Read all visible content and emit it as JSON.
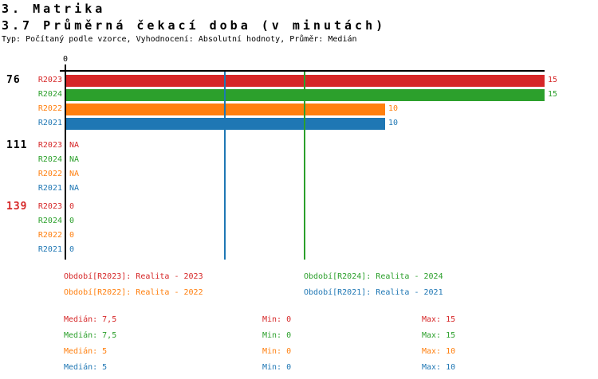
{
  "header": {
    "section_title": "3. Matrika",
    "chart_title": "3.7 Průměrná čekací doba (v minutách)",
    "meta_line": "Typ: Počítaný podle vzorce, Vyhodnocení: Absolutní hodnoty, Průměr: Medián"
  },
  "colors": {
    "series": {
      "R2023": "#d62728",
      "R2024": "#2ca02c",
      "R2022": "#ff7f0e",
      "R2021": "#1f77b4"
    },
    "axis": "#000000",
    "background": "#ffffff"
  },
  "chart_data": {
    "type": "bar",
    "orientation": "horizontal",
    "title": "3.7 Průměrná čekací doba (v minutách)",
    "x_range": [
      0,
      15
    ],
    "x_tick_labels": [
      "0"
    ],
    "grid": false,
    "series_names": [
      "R2023",
      "R2024",
      "R2022",
      "R2021"
    ],
    "median_lines": [
      {
        "series": "R2021",
        "value": 5
      },
      {
        "series": "R2024",
        "value": 7.5
      }
    ],
    "groups": [
      {
        "label": "76",
        "label_color": "#000000",
        "rows": [
          {
            "series": "R2023",
            "value": 15,
            "value_label": "15"
          },
          {
            "series": "R2024",
            "value": 15,
            "value_label": "15"
          },
          {
            "series": "R2022",
            "value": 10,
            "value_label": "10"
          },
          {
            "series": "R2021",
            "value": 10,
            "value_label": "10"
          }
        ]
      },
      {
        "label": "111",
        "label_color": "#000000",
        "rows": [
          {
            "series": "R2023",
            "value": null,
            "value_label": "NA"
          },
          {
            "series": "R2024",
            "value": null,
            "value_label": "NA"
          },
          {
            "series": "R2022",
            "value": null,
            "value_label": "NA"
          },
          {
            "series": "R2021",
            "value": null,
            "value_label": "NA"
          }
        ]
      },
      {
        "label": "139",
        "label_color": "#d62728",
        "rows": [
          {
            "series": "R2023",
            "value": 0,
            "value_label": "0"
          },
          {
            "series": "R2024",
            "value": 0,
            "value_label": "0"
          },
          {
            "series": "R2022",
            "value": 0,
            "value_label": "0"
          },
          {
            "series": "R2021",
            "value": 0,
            "value_label": "0"
          }
        ]
      }
    ]
  },
  "legend": {
    "items": [
      {
        "series": "R2023",
        "label": "Období[R2023]: Realita - 2023"
      },
      {
        "series": "R2024",
        "label": "Období[R2024]: Realita - 2024"
      },
      {
        "series": "R2022",
        "label": "Období[R2022]: Realita - 2022"
      },
      {
        "series": "R2021",
        "label": "Období[R2021]: Realita - 2021"
      }
    ]
  },
  "stats": {
    "rows": [
      {
        "series": "R2023",
        "median": "Medián: 7,5",
        "min": "Min: 0",
        "max": "Max: 15"
      },
      {
        "series": "R2024",
        "median": "Medián: 7,5",
        "min": "Min: 0",
        "max": "Max: 15"
      },
      {
        "series": "R2022",
        "median": "Medián: 5",
        "min": "Min: 0",
        "max": "Max: 10"
      },
      {
        "series": "R2021",
        "median": "Medián: 5",
        "min": "Min: 0",
        "max": "Max: 10"
      }
    ]
  }
}
